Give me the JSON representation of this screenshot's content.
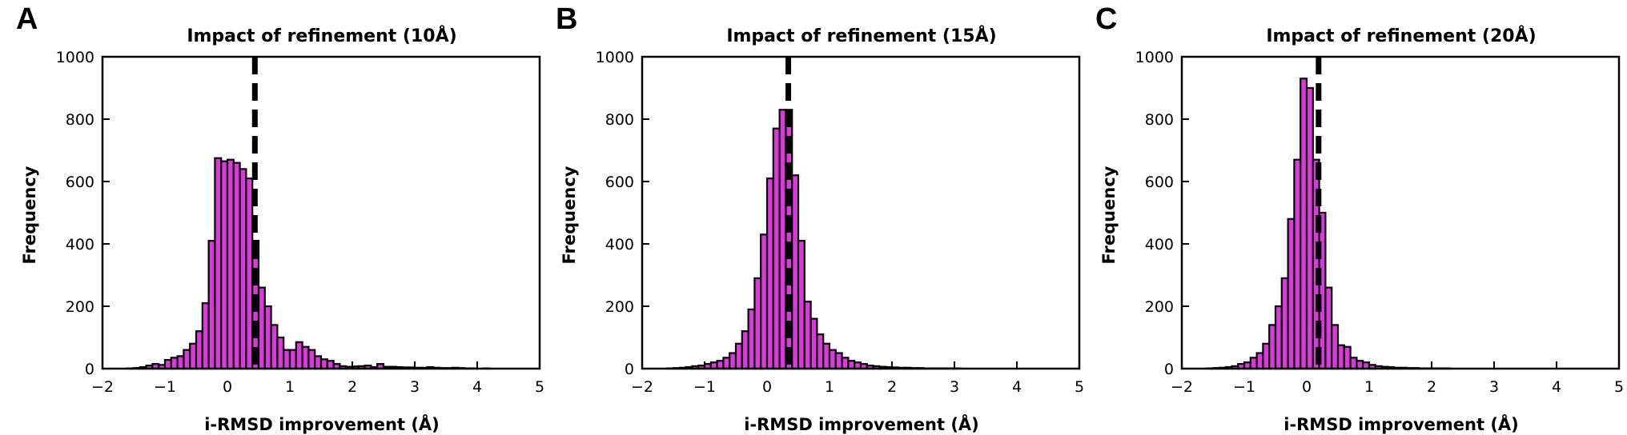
{
  "figure": {
    "bar_color": "#d93ad9",
    "edge_color": "#000000",
    "median_line_color": "#000000"
  },
  "chart_data": [
    {
      "type": "bar",
      "panel": "A",
      "title": "Impact of refinement (10Å)",
      "xlabel": "i-RMSD improvement (Å)",
      "ylabel": "Frequency",
      "xlim": [
        -2,
        5
      ],
      "ylim": [
        0,
        1000
      ],
      "xticks": [
        -2,
        -1,
        0,
        1,
        2,
        3,
        4,
        5
      ],
      "yticks": [
        0,
        200,
        400,
        600,
        800,
        1000
      ],
      "bin_start": -1.6,
      "bin_width": 0.1,
      "values": [
        1,
        2,
        5,
        10,
        15,
        12,
        28,
        35,
        40,
        60,
        80,
        120,
        210,
        410,
        675,
        665,
        670,
        660,
        640,
        610,
        410,
        260,
        200,
        140,
        100,
        60,
        60,
        85,
        70,
        60,
        40,
        30,
        25,
        15,
        8,
        6,
        7,
        8,
        10,
        5,
        15,
        6,
        6,
        5,
        4,
        4,
        3,
        3,
        5,
        3,
        2,
        2,
        3,
        2,
        1,
        1,
        0,
        1,
        0,
        0
      ],
      "median_line_x": 0.44
    },
    {
      "type": "bar",
      "panel": "B",
      "title": "Impact of refinement (15Å)",
      "xlabel": "i-RMSD improvement (Å)",
      "ylabel": "Frequency",
      "xlim": [
        -2,
        5
      ],
      "ylim": [
        0,
        1000
      ],
      "xticks": [
        -2,
        -1,
        0,
        1,
        2,
        3,
        4,
        5
      ],
      "yticks": [
        0,
        200,
        400,
        600,
        800,
        1000
      ],
      "bin_start": -1.6,
      "bin_width": 0.1,
      "values": [
        1,
        2,
        3,
        5,
        8,
        10,
        15,
        20,
        25,
        35,
        50,
        80,
        120,
        190,
        290,
        430,
        610,
        770,
        830,
        830,
        620,
        410,
        215,
        160,
        110,
        80,
        60,
        50,
        35,
        25,
        20,
        15,
        10,
        8,
        6,
        5,
        4,
        3,
        3,
        2,
        2,
        1,
        1,
        1,
        1,
        1,
        1,
        0,
        0,
        0,
        0,
        0,
        0,
        0,
        0,
        0,
        0,
        0,
        0,
        0
      ],
      "median_line_x": 0.34
    },
    {
      "type": "bar",
      "panel": "C",
      "title": "Impact of refinement (20Å)",
      "xlabel": "i-RMSD improvement (Å)",
      "ylabel": "Frequency",
      "xlim": [
        -2,
        5
      ],
      "ylim": [
        0,
        1000
      ],
      "xticks": [
        -2,
        -1,
        0,
        1,
        2,
        3,
        4,
        5
      ],
      "yticks": [
        0,
        200,
        400,
        600,
        800,
        1000
      ],
      "bin_start": -1.6,
      "bin_width": 0.1,
      "values": [
        1,
        2,
        3,
        5,
        8,
        15,
        20,
        35,
        50,
        80,
        140,
        200,
        290,
        480,
        670,
        930,
        900,
        670,
        500,
        260,
        140,
        75,
        70,
        35,
        25,
        20,
        12,
        8,
        6,
        5,
        3,
        3,
        2,
        2,
        1,
        1,
        1,
        1,
        1,
        0,
        0,
        0,
        0,
        0,
        0,
        0,
        0,
        0,
        0,
        0,
        0,
        0,
        0,
        0,
        0,
        0,
        0,
        0,
        0,
        0
      ],
      "median_line_x": 0.19
    }
  ]
}
